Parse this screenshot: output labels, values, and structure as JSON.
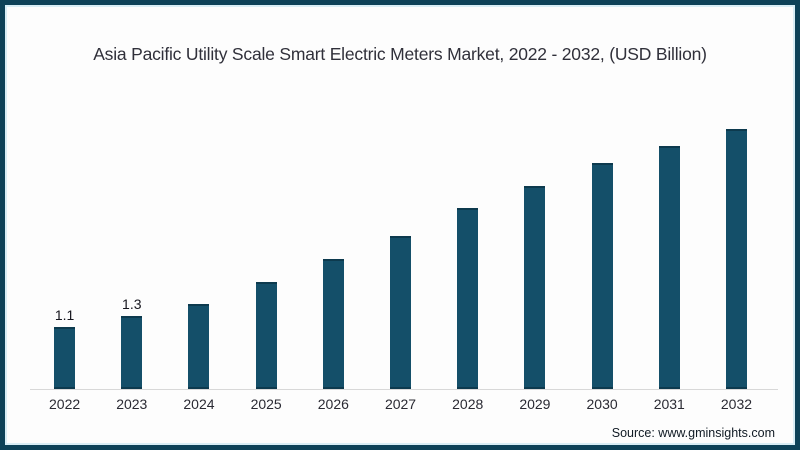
{
  "title": "Asia Pacific Utility Scale Smart Electric Meters Market, 2022 - 2032, (USD Billion)",
  "source": "Source: www.gminsights.com",
  "colors": {
    "bar": "#144f69",
    "bar_cap": "#0d3a4e",
    "frame_border": "#0e4258",
    "frame_inner_line": "#d9eef6",
    "axis_line": "#d8d8d8",
    "title_text": "#30303a",
    "tick_text": "#2a2a33",
    "value_label_text": "#15151d",
    "source_text": "#101a24",
    "background": "#fdfdfd"
  },
  "chart_data": {
    "type": "bar",
    "title": "Asia Pacific Utility Scale Smart Electric Meters Market, 2022 - 2032, (USD Billion)",
    "xlabel": "",
    "ylabel": "",
    "categories": [
      "2022",
      "2023",
      "2024",
      "2025",
      "2026",
      "2027",
      "2028",
      "2029",
      "2030",
      "2031",
      "2032"
    ],
    "values": [
      1.1,
      1.3,
      1.5,
      1.9,
      2.3,
      2.7,
      3.2,
      3.6,
      4.0,
      4.3,
      4.6
    ],
    "bar_labels": [
      "1.1",
      "1.3",
      "",
      "",
      "",
      "",
      "",
      "",
      "",
      "",
      ""
    ],
    "ylim": [
      0,
      5
    ],
    "grid": false,
    "legend": false,
    "units": "USD Billion"
  }
}
